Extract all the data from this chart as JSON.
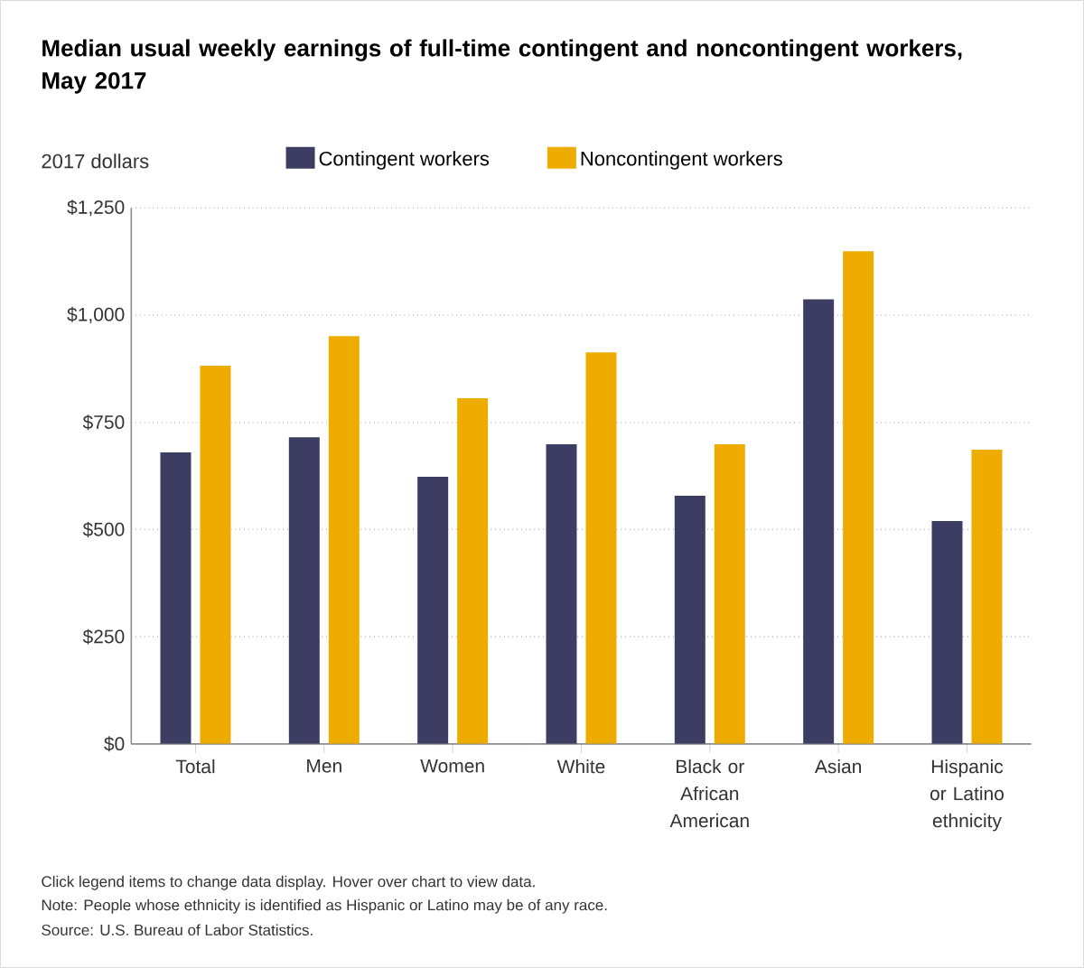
{
  "chart_data": {
    "type": "bar",
    "title": "Median usual weekly earnings of full-time contingent and noncontingent workers, May 2017",
    "ylabel": "2017 dollars",
    "categories": [
      "Total",
      "Men",
      "Women",
      "White",
      "Black or African American",
      "Asian",
      "Hispanic or Latino ethnicity"
    ],
    "series": [
      {
        "name": "Contingent workers",
        "color": "#3d3d63",
        "values": [
          680,
          715,
          623,
          699,
          579,
          1037,
          520
        ]
      },
      {
        "name": "Noncontingent workers",
        "color": "#efac00",
        "values": [
          882,
          951,
          806,
          913,
          699,
          1149,
          686
        ]
      }
    ],
    "ylim": [
      0,
      1250
    ],
    "yticks": [
      {
        "value": 0,
        "label": "$0"
      },
      {
        "value": 250,
        "label": "$250"
      },
      {
        "value": 500,
        "label": "$500"
      },
      {
        "value": 750,
        "label": "$750"
      },
      {
        "value": 1000,
        "label": "$1,000"
      },
      {
        "value": 1250,
        "label": "$1,250"
      }
    ],
    "grid": "y",
    "legend": "top",
    "annotations": [
      "Click legend items to change data display. Hover over chart to view data.",
      "Note: People whose ethnicity is identified as Hispanic or Latino may be of any race.",
      "Source: U.S. Bureau of Labor Statistics."
    ]
  }
}
